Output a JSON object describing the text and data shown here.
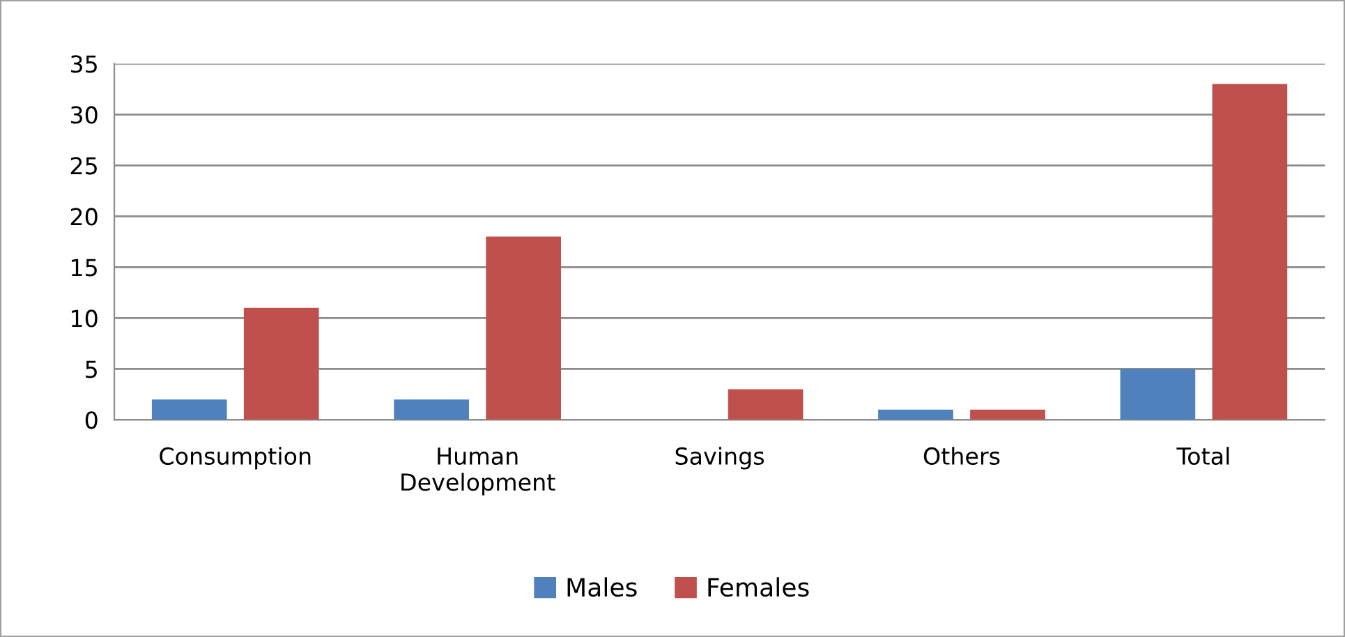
{
  "chart_data": {
    "type": "bar",
    "categories": [
      "Consumption",
      "Human\nDevelopment",
      "Savings",
      "Others",
      "Total"
    ],
    "series": [
      {
        "name": "Males",
        "color": "#4f81bd",
        "values": [
          2,
          2,
          0,
          1,
          5
        ]
      },
      {
        "name": "Females",
        "color": "#c0504d",
        "values": [
          11,
          18,
          3,
          1,
          33
        ]
      }
    ],
    "ylim": [
      0,
      35
    ],
    "yticks": [
      0,
      5,
      10,
      15,
      20,
      25,
      30,
      35
    ],
    "grid": "y",
    "legend": "bottom"
  }
}
